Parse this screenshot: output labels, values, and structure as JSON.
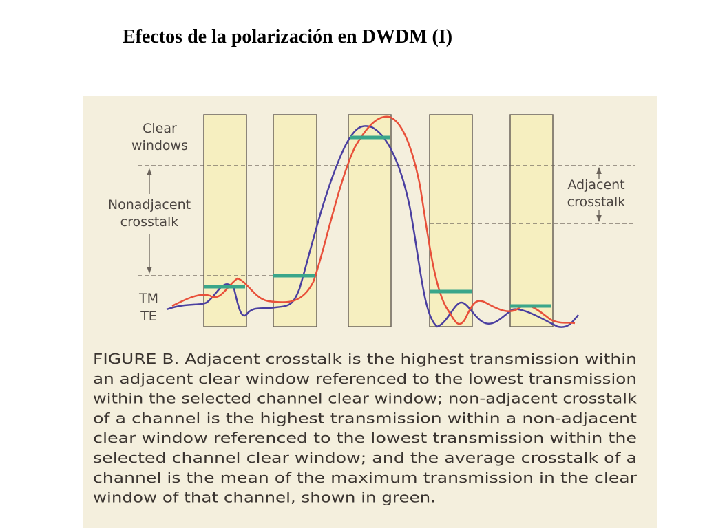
{
  "title": "Efectos de la polarización en DWDM (I)",
  "figure": {
    "labels": {
      "clear_windows": [
        "Clear",
        "windows"
      ],
      "nonadjacent_crosstalk": [
        "Nonadjacent",
        "crosstalk"
      ],
      "adjacent_crosstalk": [
        "Adjacent",
        "crosstalk"
      ],
      "tm": "TM",
      "te": "TE"
    },
    "caption": [
      "FIGURE B. Adjacent crosstalk is the highest transmission within",
      "an adjacent clear window referenced to the lowest transmission",
      "within the selected channel clear window; non-adjacent crosstalk",
      "of a channel is the highest transmission within a non-adjacent",
      "clear window referenced to the lowest transmission within the",
      "selected channel clear window; and the average crosstalk of a",
      "channel is the mean of the maximum transmission in the clear",
      "window of that channel, shown in green."
    ]
  }
}
